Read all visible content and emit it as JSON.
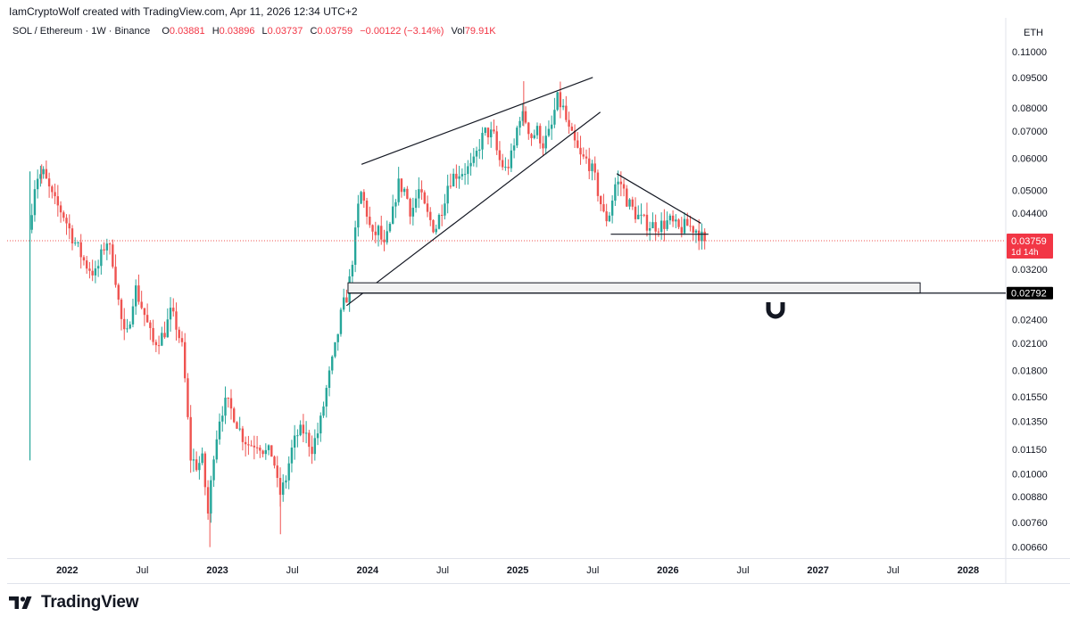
{
  "header": {
    "credit": "IamCryptoWolf created with TradingView.com, Apr 11, 2026 12:34 UTC+2",
    "symbol": "SOL / Ethereum · 1W · Binance",
    "o_label": "O",
    "o_value": "0.03881",
    "h_label": "H",
    "h_value": "0.03896",
    "l_label": "L",
    "l_value": "0.03737",
    "c_label": "C",
    "c_value": "0.03759",
    "change": "−0.00122 (−3.14%)",
    "vol_label": "Vol",
    "vol_value": "79.91K"
  },
  "chart_data": {
    "type": "candlestick",
    "title": "SOL / Ethereum · 1W · Binance",
    "currency": "ETH",
    "y_scale": "log",
    "ylim": [
      0.0062,
      0.118
    ],
    "y_ticks": [
      "0.11000",
      "0.09500",
      "0.08000",
      "0.07000",
      "0.06000",
      "0.05000",
      "0.04400",
      "0.03759",
      "0.03200",
      "0.02792",
      "0.02400",
      "0.02100",
      "0.01800",
      "0.01550",
      "0.01350",
      "0.01150",
      "0.01000",
      "0.00880",
      "0.00760",
      "0.00660"
    ],
    "x_ticks": [
      {
        "label": "2022",
        "t": 2022.0,
        "bold": true
      },
      {
        "label": "Jul",
        "t": 2022.5,
        "bold": false
      },
      {
        "label": "2023",
        "t": 2023.0,
        "bold": true
      },
      {
        "label": "Jul",
        "t": 2023.5,
        "bold": false
      },
      {
        "label": "2024",
        "t": 2024.0,
        "bold": true
      },
      {
        "label": "Jul",
        "t": 2024.5,
        "bold": false
      },
      {
        "label": "2025",
        "t": 2025.0,
        "bold": true
      },
      {
        "label": "Jul",
        "t": 2025.5,
        "bold": false
      },
      {
        "label": "2026",
        "t": 2026.0,
        "bold": true
      },
      {
        "label": "Jul",
        "t": 2026.5,
        "bold": false
      },
      {
        "label": "2027",
        "t": 2027.0,
        "bold": true
      },
      {
        "label": "Jul",
        "t": 2027.5,
        "bold": false
      },
      {
        "label": "2028",
        "t": 2028.0,
        "bold": true
      }
    ],
    "xlim": [
      2021.6,
      2028.25
    ],
    "last_price": "0.03759",
    "last_price_countdown": "1d 14h",
    "support_level": "0.02792",
    "path": [
      [
        2021.75,
        0.0115
      ],
      [
        2021.755,
        0.04
      ],
      [
        2021.8,
        0.054
      ],
      [
        2021.85,
        0.055
      ],
      [
        2021.92,
        0.047
      ],
      [
        2021.98,
        0.044
      ],
      [
        2022.05,
        0.038
      ],
      [
        2022.13,
        0.033
      ],
      [
        2022.2,
        0.031
      ],
      [
        2022.27,
        0.038
      ],
      [
        2022.32,
        0.033
      ],
      [
        2022.36,
        0.025
      ],
      [
        2022.4,
        0.021
      ],
      [
        2022.46,
        0.029
      ],
      [
        2022.52,
        0.025
      ],
      [
        2022.58,
        0.021
      ],
      [
        2022.65,
        0.022
      ],
      [
        2022.7,
        0.025
      ],
      [
        2022.74,
        0.023
      ],
      [
        2022.78,
        0.02
      ],
      [
        2022.83,
        0.011
      ],
      [
        2022.87,
        0.0105
      ],
      [
        2022.91,
        0.0108
      ],
      [
        2022.95,
        0.0078
      ],
      [
        2022.98,
        0.011
      ],
      [
        2023.03,
        0.0142
      ],
      [
        2023.07,
        0.015
      ],
      [
        2023.12,
        0.014
      ],
      [
        2023.17,
        0.0125
      ],
      [
        2023.22,
        0.0118
      ],
      [
        2023.28,
        0.012
      ],
      [
        2023.33,
        0.0113
      ],
      [
        2023.38,
        0.0112
      ],
      [
        2023.42,
        0.0088
      ],
      [
        2023.46,
        0.0095
      ],
      [
        2023.5,
        0.0113
      ],
      [
        2023.54,
        0.0125
      ],
      [
        2023.58,
        0.0128
      ],
      [
        2023.64,
        0.0116
      ],
      [
        2023.69,
        0.013
      ],
      [
        2023.74,
        0.0165
      ],
      [
        2023.79,
        0.02
      ],
      [
        2023.84,
        0.0255
      ],
      [
        2023.88,
        0.028
      ],
      [
        2023.92,
        0.0365
      ],
      [
        2023.96,
        0.05
      ],
      [
        2024.0,
        0.045
      ],
      [
        2024.04,
        0.038
      ],
      [
        2024.08,
        0.04
      ],
      [
        2024.12,
        0.036
      ],
      [
        2024.17,
        0.042
      ],
      [
        2024.21,
        0.052
      ],
      [
        2024.26,
        0.05
      ],
      [
        2024.3,
        0.044
      ],
      [
        2024.35,
        0.05
      ],
      [
        2024.4,
        0.044
      ],
      [
        2024.46,
        0.04
      ],
      [
        2024.51,
        0.046
      ],
      [
        2024.55,
        0.053
      ],
      [
        2024.6,
        0.055
      ],
      [
        2024.65,
        0.056
      ],
      [
        2024.71,
        0.057
      ],
      [
        2024.76,
        0.066
      ],
      [
        2024.8,
        0.07
      ],
      [
        2024.85,
        0.068
      ],
      [
        2024.88,
        0.06
      ],
      [
        2024.93,
        0.056
      ],
      [
        2024.98,
        0.062
      ],
      [
        2025.02,
        0.077
      ],
      [
        2025.06,
        0.075
      ],
      [
        2025.1,
        0.068
      ],
      [
        2025.14,
        0.07
      ],
      [
        2025.18,
        0.065
      ],
      [
        2025.23,
        0.07
      ],
      [
        2025.27,
        0.084
      ],
      [
        2025.31,
        0.08
      ],
      [
        2025.35,
        0.07
      ],
      [
        2025.39,
        0.065
      ],
      [
        2025.43,
        0.06
      ],
      [
        2025.48,
        0.059
      ],
      [
        2025.52,
        0.054
      ],
      [
        2025.56,
        0.047
      ],
      [
        2025.59,
        0.042
      ],
      [
        2025.62,
        0.044
      ],
      [
        2025.66,
        0.052
      ],
      [
        2025.7,
        0.052
      ],
      [
        2025.74,
        0.047
      ],
      [
        2025.79,
        0.044
      ],
      [
        2025.84,
        0.042
      ],
      [
        2025.9,
        0.041
      ],
      [
        2025.96,
        0.041
      ],
      [
        2026.02,
        0.042
      ],
      [
        2026.08,
        0.04
      ],
      [
        2026.14,
        0.041
      ],
      [
        2026.2,
        0.04
      ],
      [
        2026.25,
        0.0375
      ]
    ],
    "drawings": {
      "wedge_upper": [
        [
          2023.96,
          0.058
        ],
        [
          2025.5,
          0.095
        ]
      ],
      "wedge_lower": [
        [
          2023.86,
          0.026
        ],
        [
          2025.55,
          0.078
        ]
      ],
      "triangle_upper": [
        [
          2025.66,
          0.055
        ],
        [
          2026.22,
          0.0415
        ]
      ],
      "triangle_base": [
        [
          2025.62,
          0.039
        ],
        [
          2026.27,
          0.039
        ]
      ],
      "zone": {
        "t1": 2023.87,
        "t2": 2027.68,
        "top": 0.0296,
        "bottom": 0.02792
      },
      "support_line": {
        "t1": 2023.87,
        "price": 0.02792
      }
    }
  },
  "colors": {
    "up": "#26a69a",
    "down": "#ef5350",
    "price_label_bg": "#f23645",
    "support_label_bg": "#000000",
    "grid": "#e0e3eb",
    "zone_fill": "#f2f2f2"
  },
  "icons": {
    "magnet": "magnet-icon",
    "logo": "tradingview-logo-icon"
  },
  "currency_label": "ETH",
  "footer": {
    "brand": "TradingView"
  }
}
